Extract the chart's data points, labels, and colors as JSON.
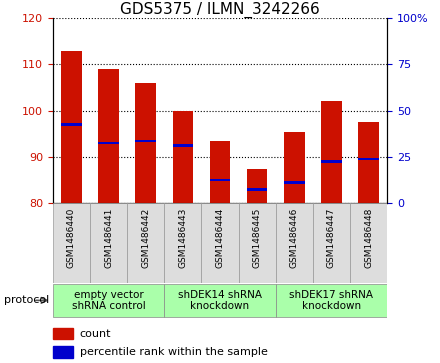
{
  "title": "GDS5375 / ILMN_3242266",
  "samples": [
    "GSM1486440",
    "GSM1486441",
    "GSM1486442",
    "GSM1486443",
    "GSM1486444",
    "GSM1486445",
    "GSM1486446",
    "GSM1486447",
    "GSM1486448"
  ],
  "counts": [
    113.0,
    109.0,
    106.0,
    100.0,
    93.5,
    87.5,
    95.5,
    102.0,
    97.5
  ],
  "percentiles_left": [
    97.0,
    93.0,
    93.5,
    92.5,
    85.0,
    83.0,
    84.5,
    89.0,
    89.5
  ],
  "ylim_left": [
    80,
    120
  ],
  "ylim_right": [
    0,
    100
  ],
  "yticks_left": [
    80,
    90,
    100,
    110,
    120
  ],
  "yticks_right": [
    0,
    25,
    50,
    75,
    100
  ],
  "ytick_labels_right": [
    "0",
    "25",
    "50",
    "75",
    "100%"
  ],
  "bar_color": "#cc1100",
  "dot_color": "#0000cc",
  "bar_width": 0.55,
  "protocols": [
    {
      "label": "empty vector\nshRNA control",
      "start": 0,
      "end": 3
    },
    {
      "label": "shDEK14 shRNA\nknockdown",
      "start": 3,
      "end": 6
    },
    {
      "label": "shDEK17 shRNA\nknockdown",
      "start": 6,
      "end": 9
    }
  ],
  "protocol_label": "protocol",
  "legend_count_label": "count",
  "legend_pct_label": "percentile rank within the sample",
  "title_fontsize": 11,
  "tick_label_fontsize": 8,
  "sample_fontsize": 6.5,
  "proto_fontsize": 7.5
}
